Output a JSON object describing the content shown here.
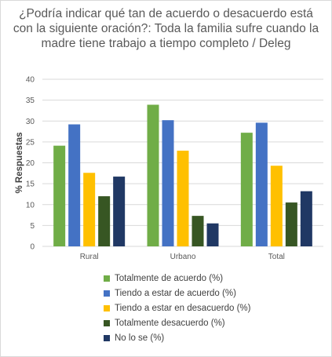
{
  "chart_data": {
    "type": "bar",
    "title": "¿Podría indicar qué tan de acuerdo o desacuerdo está con la siguiente oración?: Toda la familia sufre cuando la madre tiene trabajo a tiempo completo / Deleg",
    "ylabel": "% Respuestas",
    "xlabel": "",
    "ylim": [
      0,
      40
    ],
    "yticks": [
      0,
      5,
      10,
      15,
      20,
      25,
      30,
      35,
      40
    ],
    "categories": [
      "Rural",
      "Urbano",
      "Total"
    ],
    "series": [
      {
        "name": "Totalmente de acuerdo (%)",
        "color": "#70ad47",
        "values": [
          24.1,
          33.9,
          27.2
        ]
      },
      {
        "name": "Tiendo a estar de acuerdo (%)",
        "color": "#4472c4",
        "values": [
          29.2,
          30.2,
          29.6
        ]
      },
      {
        "name": "Tiendo a estar en desacuerdo (%)",
        "color": "#ffc000",
        "values": [
          17.6,
          22.9,
          19.3
        ]
      },
      {
        "name": "Totalmente desacuerdo (%)",
        "color": "#375623",
        "values": [
          12.0,
          7.3,
          10.5
        ]
      },
      {
        "name": "No lo se (%)",
        "color": "#203864",
        "values": [
          16.7,
          5.5,
          13.2
        ]
      }
    ],
    "grid": true,
    "legend_position": "bottom"
  }
}
